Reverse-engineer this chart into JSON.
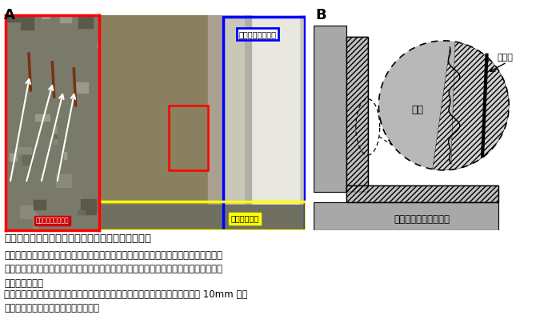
{
  "label_A": "A",
  "label_B": "B",
  "label_hifuku_hosei": "被覆工による補修",
  "label_fushoku": "腐食・露出した鉄筋",
  "label_mamorou": "摩耗した水路",
  "label_hifuku": "被覆工",
  "label_boushi": "母材",
  "label_boushi_concrete": "母材（コンクリート）",
  "caption_line1": "図１　農業用鉄筋コンクリート開水路の劣化と補修",
  "caption_A1": "Ａ．水路内面が摩耗して凹凸が生じた水路。中性化が進んでおり、一部中性化が鉄筋に",
  "caption_A2": "　　達し、鉄筋の腐食が起こっています。奥側部分は表面被覆工法による補修が行われ",
  "caption_A3": "　　ています。",
  "caption_B1": "Ｂ．表面被覆工法のうち、無機系被覆工法の断面図。凹凸が生じた表面に厚さ 10mm 程度",
  "caption_B2": "　　のセメント系材料を被覆します。",
  "bg_color": "#ffffff",
  "photo_left_color": "#7a7a6a",
  "photo_main_color": "#9a9070",
  "photo_smooth_color": "#c8c8b8",
  "photo_white_color": "#e8e8e0",
  "wall_color": "#c0c0c0",
  "back_color": "#a8a8a8",
  "gray_region_color": "#b8b8b8",
  "hatch_region_color": "#d0d0d0"
}
